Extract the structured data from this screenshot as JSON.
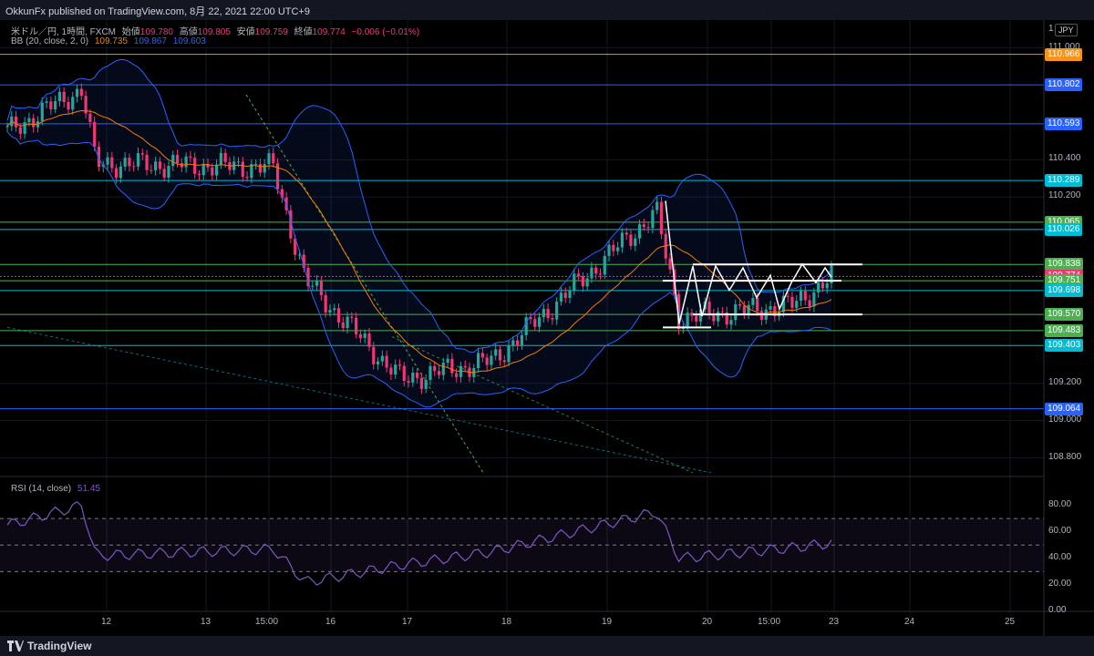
{
  "header": {
    "published": "OkkunFx published on TradingView.com, 8月 22, 2021 22:00 UTC+9"
  },
  "legend": {
    "symbol": "米ドル／円, 1時間, FXCM",
    "o_label": "始値",
    "o": "109.780",
    "h_label": "高値",
    "h": "109.805",
    "l_label": "安値",
    "l": "109.759",
    "c_label": "終値",
    "c": "109.774",
    "chg": "−0.006 (−0.01%)",
    "bb_label": "BB (20, close, 2, 0)",
    "bb_mid": "109.735",
    "bb_up": "109.867",
    "bb_lo": "109.603",
    "rsi_label": "RSI (14, close)",
    "rsi_val": "51.45"
  },
  "footer": {
    "brand": "TradingView"
  },
  "axis": {
    "currency": "JPY",
    "top_label": "1",
    "price_ticks": [
      "111.000",
      "110.400",
      "110.200",
      "109.200",
      "109.000",
      "108.800"
    ],
    "rsi_ticks": [
      "80.00",
      "60.00",
      "40.00",
      "20.00",
      "0.00"
    ],
    "x_ticks": [
      "12",
      "13",
      "15:00",
      "16",
      "17",
      "18",
      "19",
      "20",
      "15:00",
      "23",
      "24",
      "25"
    ]
  },
  "levels": [
    {
      "value": "110.966",
      "color": "#f7931a"
    },
    {
      "value": "110.802",
      "color": "#2962ff"
    },
    {
      "value": "110.593",
      "color": "#2962ff"
    },
    {
      "value": "110.289",
      "color": "#00bcd4"
    },
    {
      "value": "110.065",
      "color": "#4caf50"
    },
    {
      "value": "110.026",
      "color": "#00bcd4"
    },
    {
      "value": "109.838",
      "color": "#4caf50"
    },
    {
      "value": "109.774",
      "color": "#f23674"
    },
    {
      "value": "109.751",
      "color": "#4caf50"
    },
    {
      "value": "109.698",
      "color": "#00bcd4"
    },
    {
      "value": "109.570",
      "color": "#4caf50"
    },
    {
      "value": "109.483",
      "color": "#4caf50"
    },
    {
      "value": "109.403",
      "color": "#00bcd4"
    },
    {
      "value": "109.064",
      "color": "#2962ff"
    }
  ],
  "colors": {
    "up": "#26a69a",
    "down": "#ef5350",
    "bb": "#2962ff",
    "basis": "#f57c00",
    "rsi": "#7e57c2",
    "bg": "#000000"
  },
  "chart_data": {
    "type": "line",
    "ylim": [
      108.7,
      111.15
    ],
    "x": [
      "8/11 18:00",
      "8/12",
      "8/13",
      "8/13 15:00",
      "8/16",
      "8/17",
      "8/18",
      "8/19",
      "8/20",
      "8/20 15:00",
      "8/23"
    ],
    "price": [
      110.55,
      110.78,
      110.38,
      110.36,
      109.75,
      109.22,
      109.32,
      110.12,
      109.55,
      109.62,
      109.77
    ],
    "rsi_ylim": [
      0,
      90
    ],
    "rsi": [
      65,
      80,
      42,
      47,
      22,
      35,
      45,
      75,
      40,
      48,
      51.45
    ]
  }
}
